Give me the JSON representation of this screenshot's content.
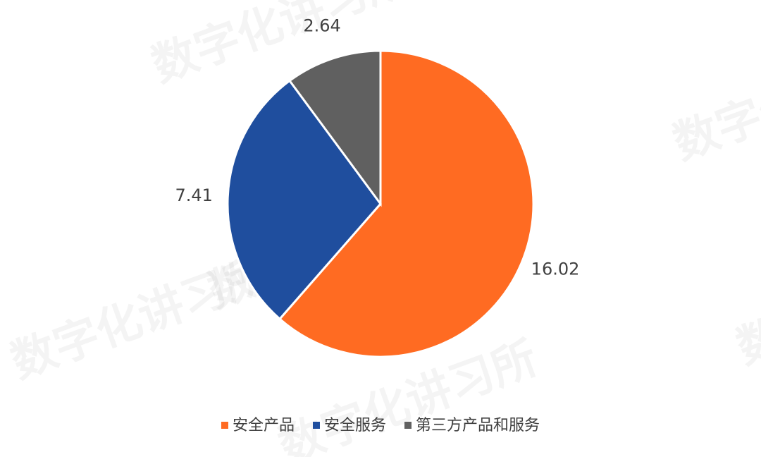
{
  "chart_data": {
    "type": "pie",
    "categories": [
      "安全产品",
      "安全服务",
      "第三方产品和服务"
    ],
    "values": [
      16.02,
      7.41,
      2.64
    ],
    "colors": [
      "#ff6b22",
      "#1f4e9e",
      "#606060"
    ],
    "legend": "bottom",
    "watermark": "数字化讲习所"
  }
}
